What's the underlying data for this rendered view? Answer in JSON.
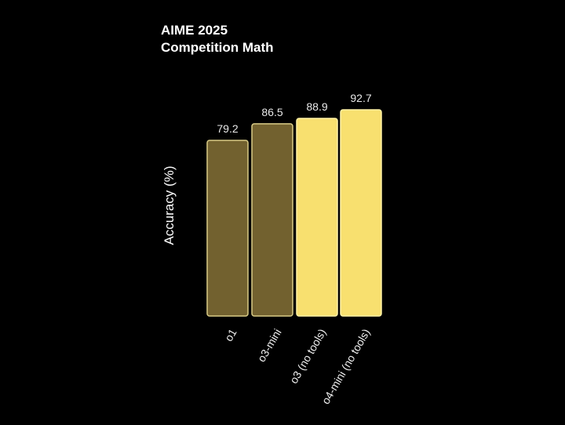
{
  "chart_data": {
    "type": "bar",
    "title": [
      "AIME 2025",
      "Competition Math"
    ],
    "ylabel": "Accuracy (%)",
    "xlabel": "",
    "categories": [
      "o1",
      "o3-mini",
      "o3 (no tools)",
      "o4-mini (no tools)"
    ],
    "values": [
      79.2,
      86.5,
      88.9,
      92.7
    ],
    "value_labels": [
      "79.2",
      "86.5",
      "88.9",
      "92.7"
    ],
    "ylim": [
      50,
      100
    ],
    "grid": false,
    "legend": "none",
    "bar_colors": [
      "#72612f",
      "#72612f",
      "#f8e06f",
      "#f8e06f"
    ],
    "bar_edge_colors": [
      "#d9cc86",
      "#d9cc86",
      "#fff2a6",
      "#fff2a6"
    ]
  },
  "colors": {
    "background": "#000000",
    "text": "#ffffff",
    "value_text": "#e8e8e8",
    "tick_text": "#eeeeee"
  }
}
